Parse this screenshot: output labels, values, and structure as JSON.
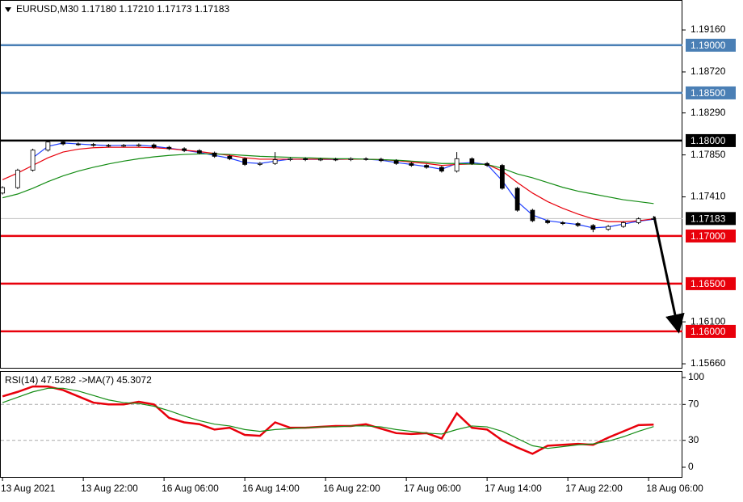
{
  "chart_data": [
    {
      "type": "candlestick",
      "title": "EURUSD,M30  1.17180 1.17210 1.17173 1.17183",
      "x": [
        0,
        3,
        6,
        9,
        12,
        15,
        18,
        21,
        24,
        27,
        30,
        33,
        36,
        39,
        42,
        45,
        48,
        51,
        54,
        57,
        60,
        63,
        66,
        69,
        72,
        75,
        78,
        81,
        84,
        87,
        90,
        93,
        96,
        99,
        102,
        105,
        108,
        111,
        114,
        117,
        120,
        123,
        126,
        129
      ],
      "open": [
        1.1745,
        1.17507,
        1.1769,
        1.179,
        1.17985,
        1.17965,
        1.1796,
        1.1795,
        1.17945,
        1.1795,
        1.17955,
        1.1793,
        1.17915,
        1.17895,
        1.1787,
        1.17835,
        1.1781,
        1.1775,
        1.1776,
        1.178,
        1.1781,
        1.178,
        1.17805,
        1.178,
        1.1781,
        1.17805,
        1.1779,
        1.1776,
        1.1774,
        1.1772,
        1.1768,
        1.1781,
        1.1776,
        1.1774,
        1.175,
        1.1727,
        1.1716,
        1.1714,
        1.1713,
        1.1711,
        1.1707,
        1.171,
        1.1714,
        1.1718
      ],
      "high": [
        1.17522,
        1.17705,
        1.17915,
        1.18,
        1.18,
        1.1798,
        1.17975,
        1.17965,
        1.17965,
        1.1797,
        1.1797,
        1.17945,
        1.1793,
        1.1791,
        1.17885,
        1.1785,
        1.17825,
        1.17775,
        1.1788,
        1.17825,
        1.17825,
        1.1782,
        1.1782,
        1.17825,
        1.17825,
        1.1782,
        1.17805,
        1.17775,
        1.17755,
        1.17735,
        1.1788,
        1.17825,
        1.17775,
        1.17755,
        1.17515,
        1.17285,
        1.17175,
        1.17155,
        1.17145,
        1.17125,
        1.17115,
        1.17155,
        1.17195,
        1.1721
      ],
      "low": [
        1.17435,
        1.17492,
        1.17675,
        1.17885,
        1.1795,
        1.17945,
        1.17935,
        1.1793,
        1.1793,
        1.17935,
        1.17915,
        1.179,
        1.1788,
        1.17855,
        1.1782,
        1.17795,
        1.17735,
        1.17735,
        1.17745,
        1.17785,
        1.17785,
        1.17785,
        1.17785,
        1.17785,
        1.1779,
        1.17775,
        1.17745,
        1.17725,
        1.17705,
        1.17665,
        1.17665,
        1.17745,
        1.17725,
        1.17485,
        1.17255,
        1.17145,
        1.17125,
        1.17115,
        1.17095,
        1.1704,
        1.17055,
        1.17085,
        1.17125,
        1.17173
      ],
      "close": [
        1.17507,
        1.1769,
        1.179,
        1.17985,
        1.17965,
        1.1796,
        1.1795,
        1.17945,
        1.1795,
        1.17955,
        1.1793,
        1.17915,
        1.17895,
        1.1787,
        1.17835,
        1.1781,
        1.1775,
        1.1776,
        1.178,
        1.1781,
        1.178,
        1.17805,
        1.178,
        1.1781,
        1.17805,
        1.1779,
        1.1776,
        1.1774,
        1.1772,
        1.1768,
        1.1781,
        1.1776,
        1.1774,
        1.175,
        1.1727,
        1.1716,
        1.1714,
        1.1713,
        1.1711,
        1.1707,
        1.171,
        1.1714,
        1.1718,
        1.17183
      ],
      "series": [
        {
          "color": "#1f3fff",
          "values": [
            null,
            null,
            1.1782,
            1.1794,
            1.17975,
            1.17965,
            1.17955,
            1.17948,
            1.1795,
            1.17952,
            1.1794,
            1.1792,
            1.179,
            1.17875,
            1.17845,
            1.17815,
            1.1777,
            1.1776,
            1.17785,
            1.17805,
            1.17803,
            1.17803,
            1.17802,
            1.17806,
            1.17805,
            1.17795,
            1.1777,
            1.1775,
            1.17728,
            1.177,
            1.1776,
            1.1777,
            1.1775,
            1.1758,
            1.1736,
            1.1722,
            1.1716,
            1.1714,
            1.1712,
            1.17085,
            1.17095,
            1.17125,
            1.17155,
            1.17175
          ]
        },
        {
          "color": "#e8000b",
          "values": [
            1.1759,
            1.1766,
            1.1774,
            1.1782,
            1.1788,
            1.1791,
            1.17925,
            1.1793,
            1.1793,
            1.1793,
            1.17925,
            1.17915,
            1.179,
            1.17885,
            1.17865,
            1.17845,
            1.1782,
            1.17805,
            1.17805,
            1.17805,
            1.17805,
            1.17805,
            1.17805,
            1.17805,
            1.17805,
            1.178,
            1.1779,
            1.17775,
            1.1776,
            1.1774,
            1.1775,
            1.17755,
            1.1775,
            1.1768,
            1.1756,
            1.1745,
            1.1736,
            1.1729,
            1.1723,
            1.1718,
            1.1715,
            1.1715,
            1.1716,
            1.1718
          ]
        },
        {
          "color": "#148c14",
          "values": [
            1.174,
            1.1744,
            1.175,
            1.1757,
            1.1763,
            1.1768,
            1.1772,
            1.17755,
            1.17785,
            1.1781,
            1.1783,
            1.17845,
            1.17855,
            1.1786,
            1.1786,
            1.17855,
            1.17845,
            1.17835,
            1.1783,
            1.17825,
            1.1782,
            1.17815,
            1.1781,
            1.1781,
            1.17805,
            1.178,
            1.17795,
            1.17785,
            1.17775,
            1.1776,
            1.1776,
            1.17755,
            1.1775,
            1.1771,
            1.1765,
            1.1761,
            1.1756,
            1.1751,
            1.1747,
            1.1744,
            1.1741,
            1.1738,
            1.1736,
            1.1734
          ]
        }
      ],
      "xlim": [
        -0.5,
        134.7
      ],
      "ylim": [
        1.15618,
        1.19474
      ],
      "yticks": [
        {
          "value": 1.1916,
          "label": "1.19160"
        },
        {
          "value": 1.1872,
          "label": "1.18720"
        },
        {
          "value": 1.1829,
          "label": "1.18290"
        },
        {
          "value": 1.1785,
          "label": "1.17850"
        },
        {
          "value": 1.1741,
          "label": "1.17410"
        },
        {
          "value": 1.161,
          "label": "1.16100"
        },
        {
          "value": 1.1566,
          "label": "1.15660"
        }
      ],
      "levels": [
        {
          "value": 1.19,
          "label": "1.19000",
          "color": "#4a7fb5"
        },
        {
          "value": 1.185,
          "label": "1.18500",
          "color": "#4a7fb5"
        },
        {
          "value": 1.18,
          "label": "1.18000",
          "color": "#000000"
        },
        {
          "value": 1.17,
          "label": "1.17000",
          "color": "#e8000b"
        },
        {
          "value": 1.165,
          "label": "1.16500",
          "color": "#e8000b"
        },
        {
          "value": 1.16,
          "label": "1.16000",
          "color": "#e8000b"
        }
      ],
      "current_price": {
        "value": 1.17183,
        "label": "1.17183"
      }
    },
    {
      "type": "line",
      "title": "RSI(14) 47.5282  ->MA(7) 45.3072",
      "x": [
        0,
        3,
        6,
        9,
        12,
        15,
        18,
        21,
        24,
        27,
        30,
        33,
        36,
        39,
        42,
        45,
        48,
        51,
        54,
        57,
        60,
        63,
        66,
        69,
        72,
        75,
        78,
        81,
        84,
        87,
        90,
        93,
        96,
        99,
        102,
        105,
        108,
        111,
        114,
        117,
        120,
        123,
        126,
        129
      ],
      "series": [
        {
          "color": "#e8000b",
          "values": [
            79,
            84,
            90,
            90,
            86,
            79,
            72,
            70,
            70,
            73,
            70,
            55,
            50,
            48,
            42,
            44,
            36,
            35,
            50,
            44,
            44,
            45,
            46,
            46,
            48,
            43,
            38,
            37,
            38,
            32,
            60,
            44,
            42,
            30,
            22,
            15,
            24,
            25,
            26,
            25,
            33,
            40,
            47,
            47.5282
          ]
        },
        {
          "color": "#148c14",
          "values": [
            72,
            78,
            84,
            88,
            88,
            85,
            80,
            75,
            72,
            71,
            68,
            63,
            57,
            52,
            48,
            46,
            42,
            40,
            42,
            43,
            44,
            45,
            45,
            46,
            46,
            45,
            42,
            40,
            38,
            37,
            42,
            46,
            45,
            40,
            32,
            24,
            21,
            23,
            25,
            26,
            29,
            34,
            40,
            45.3072
          ]
        }
      ],
      "xlim": [
        -0.5,
        134.7
      ],
      "ylim": [
        -10.8,
        106.3
      ],
      "yticks": [
        100,
        70,
        30,
        0
      ],
      "levels": [
        70,
        30
      ],
      "xticks": [
        {
          "value": 0,
          "label": "13 Aug 2021"
        },
        {
          "value": 16,
          "label": "13 Aug 22:00"
        },
        {
          "value": 32,
          "label": "16 Aug 06:00"
        },
        {
          "value": 48,
          "label": "16 Aug 14:00"
        },
        {
          "value": 64,
          "label": "16 Aug 22:00"
        },
        {
          "value": 80,
          "label": "17 Aug 06:00"
        },
        {
          "value": 96,
          "label": "17 Aug 14:00"
        },
        {
          "value": 112,
          "label": "17 Aug 22:00"
        },
        {
          "value": 128,
          "label": "18 Aug 06:00"
        }
      ]
    }
  ]
}
